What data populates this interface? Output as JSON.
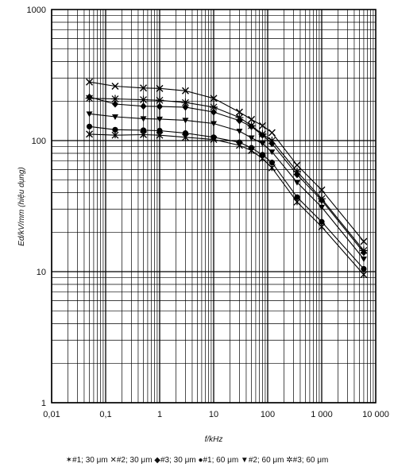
{
  "chart_data": {
    "type": "line",
    "xlabel": "f/kHz",
    "ylabel": "Ed/kV/mm (hiệu dụng)",
    "x_scale": "log",
    "y_scale": "log",
    "xlim": [
      0.01,
      10000
    ],
    "ylim": [
      1,
      1000
    ],
    "grid": true,
    "x_ticks": [
      {
        "value": 0.01,
        "label": "0,01"
      },
      {
        "value": 0.1,
        "label": "0,1"
      },
      {
        "value": 1,
        "label": "1"
      },
      {
        "value": 10,
        "label": "10"
      },
      {
        "value": 100,
        "label": "100"
      },
      {
        "value": 1000,
        "label": "1 000"
      },
      {
        "value": 10000,
        "label": "10 000"
      }
    ],
    "y_ticks": [
      {
        "value": 1,
        "label": "1"
      },
      {
        "value": 10,
        "label": "10"
      },
      {
        "value": 100,
        "label": "100"
      },
      {
        "value": 1000,
        "label": "1000"
      }
    ],
    "legend_text": "✶#1; 30 μm ✕#2; 30 μm ◆#3; 30 μm ●#1; 60 μm ▼#2; 60 μm ✲#3; 60 μm",
    "legend_position": "bottom",
    "series": [
      {
        "name": "#1; 30 μm",
        "marker": "asterisk",
        "x": [
          0.05,
          0.15,
          0.5,
          1,
          3,
          10,
          30,
          50,
          80,
          120,
          350,
          1000,
          6000
        ],
        "y": [
          112,
          110,
          111,
          110,
          106,
          102,
          92,
          84,
          73,
          62,
          34,
          22,
          9.5
        ]
      },
      {
        "name": "#2; 30 μm",
        "marker": "x",
        "x": [
          0.05,
          0.15,
          0.5,
          1,
          3,
          10,
          30,
          50,
          80,
          120,
          350,
          1000,
          6000
        ],
        "y": [
          280,
          260,
          252,
          250,
          240,
          210,
          165,
          145,
          130,
          115,
          65,
          42,
          17
        ]
      },
      {
        "name": "#3; 30 μm",
        "marker": "diamond",
        "x": [
          0.05,
          0.15,
          0.5,
          1,
          3,
          10,
          30,
          50,
          80,
          120,
          350,
          1000,
          6000
        ],
        "y": [
          215,
          190,
          183,
          182,
          180,
          165,
          142,
          128,
          110,
          95,
          55,
          35,
          14
        ]
      },
      {
        "name": "#1; 60 μm",
        "marker": "circle",
        "x": [
          0.05,
          0.15,
          0.5,
          1,
          3,
          10,
          30,
          50,
          80,
          120,
          350,
          1000,
          6000
        ],
        "y": [
          128,
          121,
          120,
          119,
          114,
          106,
          97,
          88,
          78,
          68,
          37,
          24,
          10.5
        ]
      },
      {
        "name": "#2; 60 μm",
        "marker": "triangle-down",
        "x": [
          0.05,
          0.15,
          0.5,
          1,
          3,
          10,
          30,
          50,
          80,
          120,
          350,
          1000,
          6000
        ],
        "y": [
          160,
          152,
          147,
          146,
          143,
          135,
          118,
          105,
          95,
          82,
          48,
          31,
          12.5
        ]
      },
      {
        "name": "#3; 60 μm",
        "marker": "star",
        "x": [
          0.05,
          0.15,
          0.5,
          1,
          3,
          10,
          30,
          50,
          80,
          120,
          350,
          1000,
          6000
        ],
        "y": [
          210,
          208,
          205,
          203,
          195,
          180,
          150,
          130,
          112,
          100,
          58,
          36,
          14.5
        ]
      }
    ]
  }
}
